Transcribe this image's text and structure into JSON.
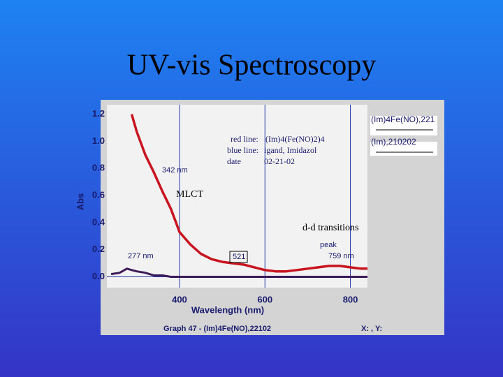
{
  "chart_data": {
    "type": "line",
    "title": "UV-vis Spectroscopy",
    "x_label": "Wavelength (nm)",
    "y_label": "Abs",
    "x": [
      240,
      260,
      277,
      288,
      300,
      320,
      340,
      360,
      380,
      400,
      425,
      450,
      475,
      500,
      525,
      550,
      575,
      600,
      625,
      650,
      675,
      700,
      725,
      750,
      775,
      800,
      825,
      840
    ],
    "series": [
      {
        "name": "(Im)4Fe(NO),221",
        "color": "#c8141e",
        "values": [
          null,
          null,
          null,
          1.2,
          1.07,
          0.9,
          0.77,
          0.63,
          0.5,
          0.33,
          0.24,
          0.17,
          0.13,
          0.11,
          0.1,
          0.09,
          0.07,
          0.05,
          0.04,
          0.04,
          0.05,
          0.06,
          0.07,
          0.08,
          0.08,
          0.07,
          0.06,
          0.06
        ]
      },
      {
        "name": "(Im),210202",
        "color": "#3c1a5a",
        "values": [
          0.02,
          0.03,
          0.06,
          0.05,
          0.04,
          0.03,
          0.01,
          0.01,
          0.0,
          0.0,
          0.0,
          0.0,
          0.0,
          0.0,
          0.0,
          0.0,
          0.0,
          0.0,
          0.0,
          0.0,
          0.0,
          0.0,
          0.0,
          0.0,
          0.0,
          0.0,
          0.0,
          0.0
        ]
      }
    ],
    "xlim": [
      230,
      840
    ],
    "ylim": [
      -0.08,
      1.27
    ],
    "xticks": [
      400,
      600,
      800
    ],
    "yticks": [
      {
        "value": 0,
        "label": "0.0"
      },
      0.2,
      0.4,
      0.6,
      0.8,
      {
        "value": 1,
        "label": "1.0"
      },
      1.2
    ],
    "grid": true,
    "annotations": [
      "red line:",
      "(Im)4(Fe(NO)2)4",
      "blue line:",
      "igand, Imidazol",
      "date",
      "02-21-02",
      "342 nm",
      "MLCT",
      "d-d transitions",
      "peak",
      "759 nm",
      "277 nm",
      "521",
      "Graph 47 - (Im)4Fe(NO),22102",
      "X: , Y:"
    ]
  }
}
